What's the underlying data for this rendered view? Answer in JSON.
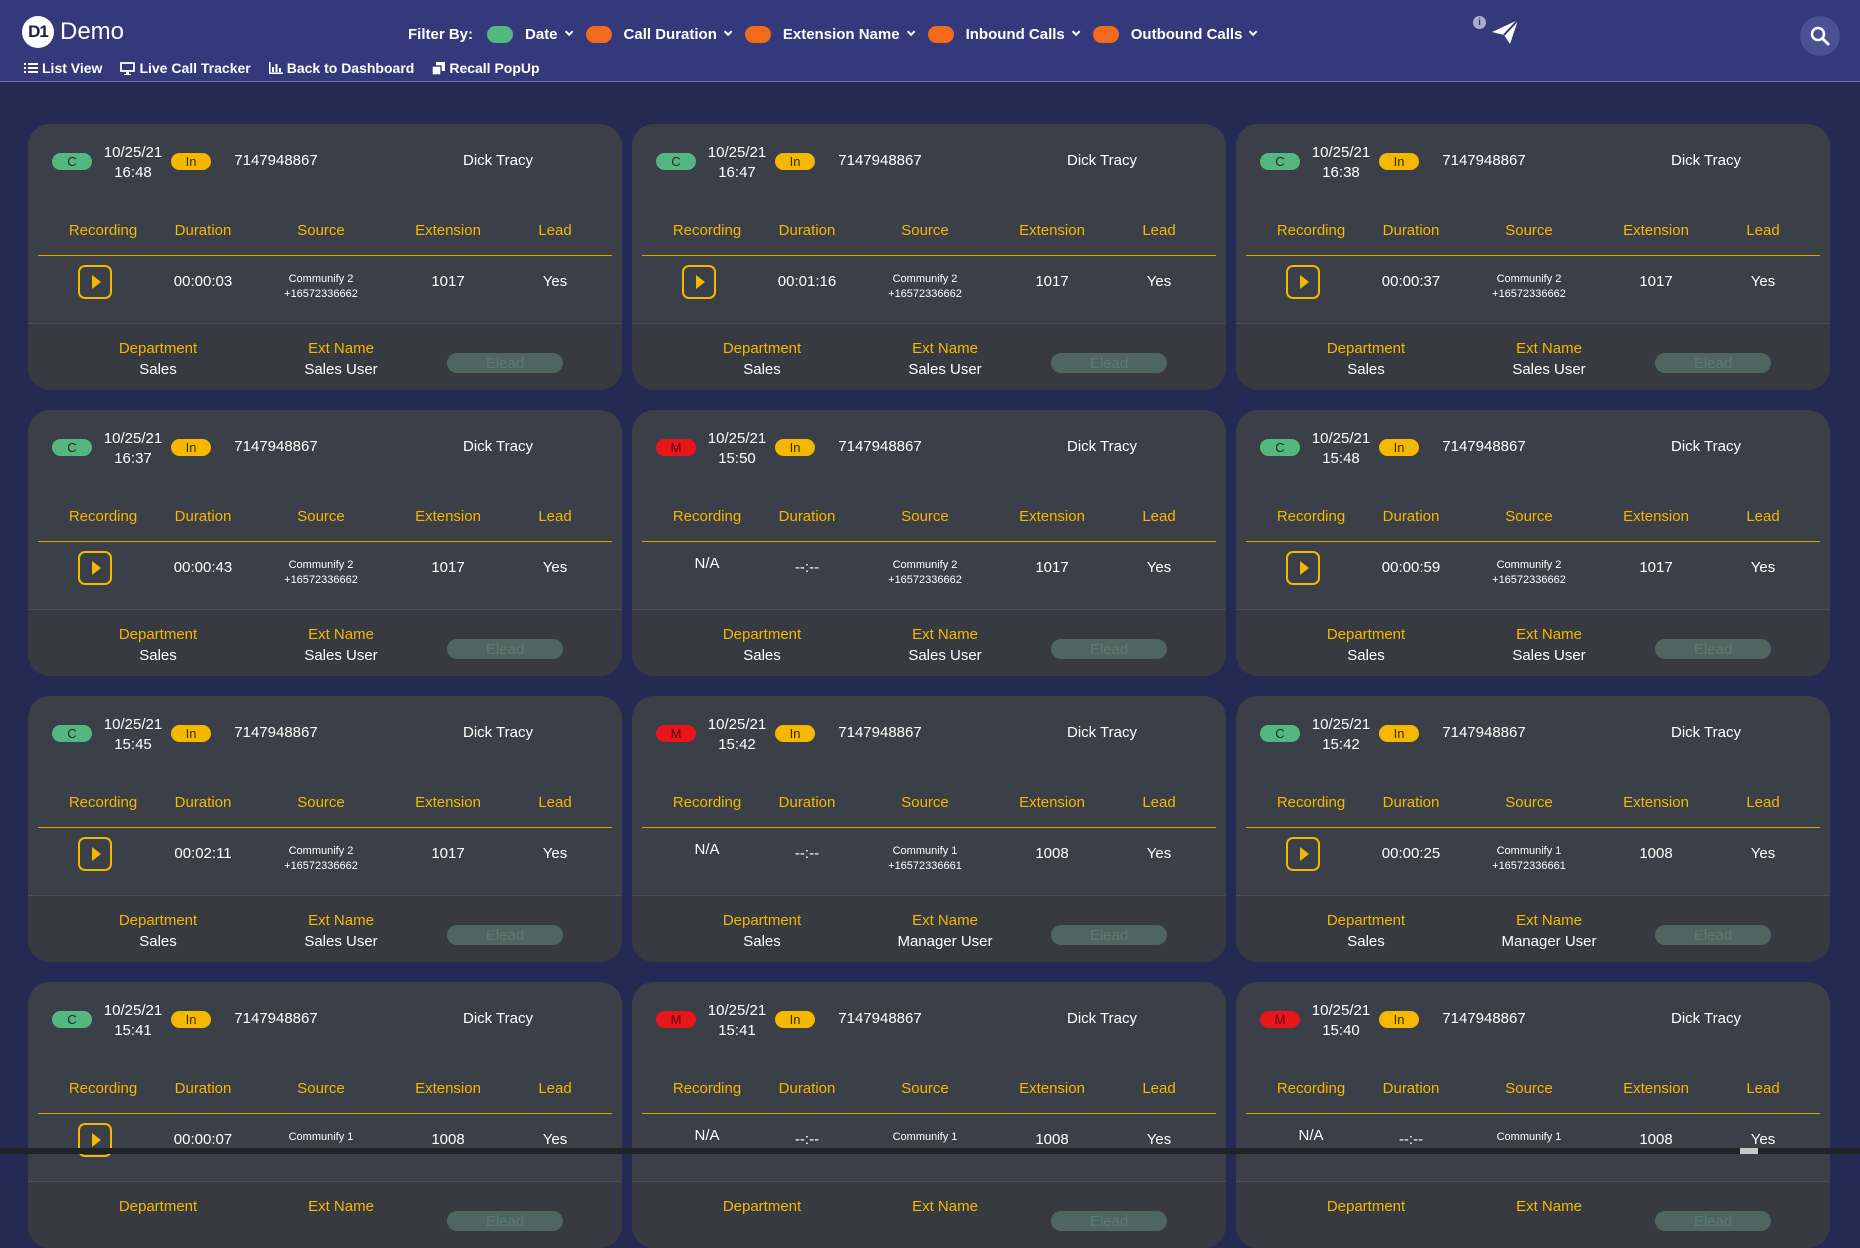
{
  "brand": {
    "logo": "D1",
    "name": "Demo"
  },
  "filter": {
    "label": "Filter By:",
    "items": [
      {
        "label": "Date",
        "toggle_color": "#54b781"
      },
      {
        "label": "Call Duration",
        "toggle_color": "#f26a1b"
      },
      {
        "label": "Extension Name",
        "toggle_color": "#f26a1b"
      },
      {
        "label": "Inbound Calls",
        "toggle_color": "#f26a1b"
      },
      {
        "label": "Outbound Calls",
        "toggle_color": "#f26a1b"
      }
    ]
  },
  "nav": [
    {
      "label": "List View",
      "icon": "list-icon"
    },
    {
      "label": "Live Call Tracker",
      "icon": "monitor-icon"
    },
    {
      "label": "Back to Dashboard",
      "icon": "bar-chart-icon"
    },
    {
      "label": "Recall PopUp",
      "icon": "copy-icon"
    }
  ],
  "header_icons": {
    "info": "i",
    "send": "paper-plane-icon",
    "search": "search-icon"
  },
  "columns": [
    "Recording",
    "Duration",
    "Source",
    "Extension",
    "Lead"
  ],
  "bottom_labels": {
    "department": "Department",
    "ext_name": "Ext Name",
    "elead": "Elead"
  },
  "colors": {
    "missed": "#e8161b",
    "completed": "#54b781",
    "inbound": "#f5b800",
    "accent": "#f5b800"
  },
  "calls": [
    {
      "status": "C",
      "date": "10/25/21",
      "time": "16:48",
      "direction": "In",
      "phone": "7147948867",
      "caller": "Dick Tracy",
      "recording": true,
      "duration": "00:00:03",
      "source_name": "Communify 2",
      "source_number": "+16572336662",
      "extension": "1017",
      "lead": "Yes",
      "department": "Sales",
      "ext_name": "Sales User"
    },
    {
      "status": "C",
      "date": "10/25/21",
      "time": "16:47",
      "direction": "In",
      "phone": "7147948867",
      "caller": "Dick Tracy",
      "recording": true,
      "duration": "00:01:16",
      "source_name": "Communify 2",
      "source_number": "+16572336662",
      "extension": "1017",
      "lead": "Yes",
      "department": "Sales",
      "ext_name": "Sales User"
    },
    {
      "status": "C",
      "date": "10/25/21",
      "time": "16:38",
      "direction": "In",
      "phone": "7147948867",
      "caller": "Dick Tracy",
      "recording": true,
      "duration": "00:00:37",
      "source_name": "Communify 2",
      "source_number": "+16572336662",
      "extension": "1017",
      "lead": "Yes",
      "department": "Sales",
      "ext_name": "Sales User"
    },
    {
      "status": "C",
      "date": "10/25/21",
      "time": "16:37",
      "direction": "In",
      "phone": "7147948867",
      "caller": "Dick Tracy",
      "recording": true,
      "duration": "00:00:43",
      "source_name": "Communify 2",
      "source_number": "+16572336662",
      "extension": "1017",
      "lead": "Yes",
      "department": "Sales",
      "ext_name": "Sales User"
    },
    {
      "status": "M",
      "date": "10/25/21",
      "time": "15:50",
      "direction": "In",
      "phone": "7147948867",
      "caller": "Dick Tracy",
      "recording": false,
      "recording_text": "N/A",
      "duration": "--:--",
      "source_name": "Communify 2",
      "source_number": "+16572336662",
      "extension": "1017",
      "lead": "Yes",
      "department": "Sales",
      "ext_name": "Sales User"
    },
    {
      "status": "C",
      "date": "10/25/21",
      "time": "15:48",
      "direction": "In",
      "phone": "7147948867",
      "caller": "Dick Tracy",
      "recording": true,
      "duration": "00:00:59",
      "source_name": "Communify 2",
      "source_number": "+16572336662",
      "extension": "1017",
      "lead": "Yes",
      "department": "Sales",
      "ext_name": "Sales User"
    },
    {
      "status": "C",
      "date": "10/25/21",
      "time": "15:45",
      "direction": "In",
      "phone": "7147948867",
      "caller": "Dick Tracy",
      "recording": true,
      "duration": "00:02:11",
      "source_name": "Communify 2",
      "source_number": "+16572336662",
      "extension": "1017",
      "lead": "Yes",
      "department": "Sales",
      "ext_name": "Sales User"
    },
    {
      "status": "M",
      "date": "10/25/21",
      "time": "15:42",
      "direction": "In",
      "phone": "7147948867",
      "caller": "Dick Tracy",
      "recording": false,
      "recording_text": "N/A",
      "duration": "--:--",
      "source_name": "Communify 1",
      "source_number": "+16572336661",
      "extension": "1008",
      "lead": "Yes",
      "department": "Sales",
      "ext_name": "Manager User"
    },
    {
      "status": "C",
      "date": "10/25/21",
      "time": "15:42",
      "direction": "In",
      "phone": "7147948867",
      "caller": "Dick Tracy",
      "recording": true,
      "duration": "00:00:25",
      "source_name": "Communify 1",
      "source_number": "+16572336661",
      "extension": "1008",
      "lead": "Yes",
      "department": "Sales",
      "ext_name": "Manager User"
    },
    {
      "status": "C",
      "date": "10/25/21",
      "time": "15:41",
      "direction": "In",
      "phone": "7147948867",
      "caller": "Dick Tracy",
      "recording": true,
      "duration": "00:00:07",
      "source_name": "Communify 1",
      "source_number": "",
      "extension": "1008",
      "lead": "Yes",
      "department": "",
      "ext_name": ""
    },
    {
      "status": "M",
      "date": "10/25/21",
      "time": "15:41",
      "direction": "In",
      "phone": "7147948867",
      "caller": "Dick Tracy",
      "recording": false,
      "recording_text": "N/A",
      "duration": "--:--",
      "source_name": "Communify 1",
      "source_number": "",
      "extension": "1008",
      "lead": "Yes",
      "department": "",
      "ext_name": ""
    },
    {
      "status": "M",
      "date": "10/25/21",
      "time": "15:40",
      "direction": "In",
      "phone": "7147948867",
      "caller": "Dick Tracy",
      "recording": false,
      "recording_text": "N/A",
      "duration": "--:--",
      "source_name": "Communify 1",
      "source_number": "",
      "extension": "1008",
      "lead": "Yes",
      "department": "",
      "ext_name": ""
    }
  ]
}
